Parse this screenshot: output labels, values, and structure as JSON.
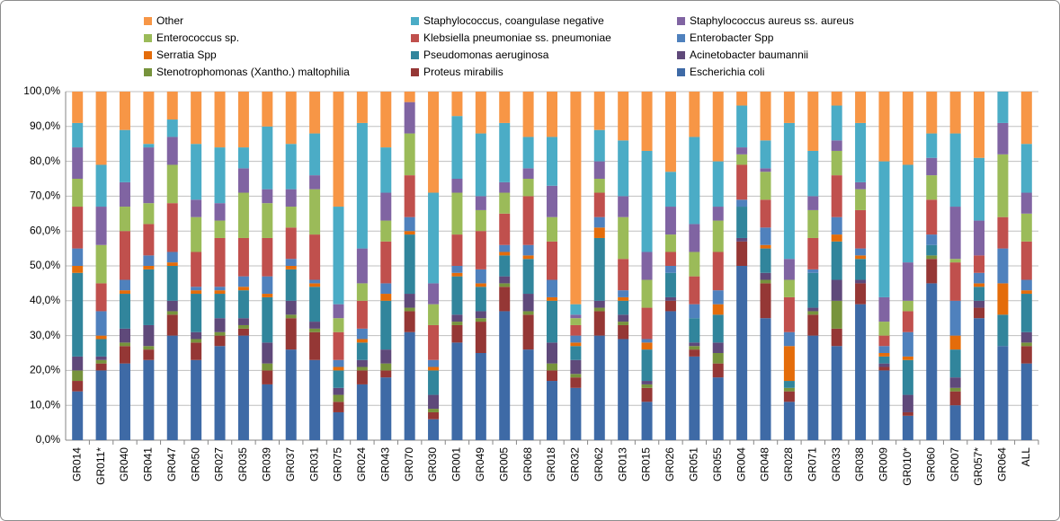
{
  "chart_data": {
    "type": "stacked_bar",
    "categories": [
      "GR014",
      "GR011*",
      "GR040",
      "GR041",
      "GR047",
      "GR050",
      "GR027",
      "GR035",
      "GR039",
      "GR037",
      "GR031",
      "GR075",
      "GR024",
      "GR043",
      "GR070",
      "GR030",
      "GR001",
      "GR049",
      "GR005",
      "GR068",
      "GR018",
      "GR032",
      "GR062",
      "GR013",
      "GR015",
      "GR026",
      "GR051",
      "GR055",
      "GR004",
      "GR048",
      "GR028",
      "GR071",
      "GR033",
      "GR038",
      "GR009",
      "GR010*",
      "GR060",
      "GR007",
      "GR057*",
      "GR064",
      "ALL"
    ],
    "ylim": [
      0,
      100
    ],
    "yticks": [
      {
        "value": 0,
        "label": "0,0%"
      },
      {
        "value": 10,
        "label": "10,0%"
      },
      {
        "value": 20,
        "label": "20,0%"
      },
      {
        "value": 30,
        "label": "30,0%"
      },
      {
        "value": 40,
        "label": "40,0%"
      },
      {
        "value": 50,
        "label": "50,0%"
      },
      {
        "value": 60,
        "label": "60,0%"
      },
      {
        "value": 70,
        "label": "70,0%"
      },
      {
        "value": 80,
        "label": "80,0%"
      },
      {
        "value": 90,
        "label": "90,0%"
      },
      {
        "value": 100,
        "label": "100,0%"
      }
    ],
    "grid": true,
    "series": [
      {
        "name": "Other",
        "color": "#f79646",
        "values": [
          9,
          21,
          11,
          15,
          8,
          15,
          16,
          16,
          10,
          15,
          12,
          33,
          9,
          16,
          3,
          29,
          7,
          12,
          9,
          13,
          13,
          61,
          11,
          14,
          17,
          23,
          13,
          20,
          4,
          14,
          9,
          17,
          4,
          9,
          20,
          21,
          12,
          12,
          19,
          0,
          15
        ]
      },
      {
        "name": "Staphylococcus, coangulase negative",
        "color": "#4bacc6",
        "values": [
          7,
          12,
          15,
          1,
          5,
          16,
          16,
          6,
          18,
          13,
          12,
          28,
          36,
          13,
          0,
          26,
          18,
          18,
          17,
          9,
          14,
          3,
          9,
          16,
          29,
          10,
          25,
          13,
          12,
          8,
          39,
          13,
          10,
          17,
          39,
          28,
          7,
          21,
          18,
          9,
          14
        ]
      },
      {
        "name": "Staphylococcus aureus ss. aureus",
        "color": "#8064a2",
        "values": [
          9,
          11,
          7,
          16,
          8,
          5,
          5,
          7,
          4,
          5,
          4,
          4,
          10,
          8,
          9,
          6,
          4,
          4,
          3,
          3,
          9,
          1,
          5,
          6,
          8,
          8,
          8,
          4,
          2,
          1,
          6,
          4,
          3,
          2,
          7,
          11,
          5,
          15,
          10,
          9,
          6
        ]
      },
      {
        "name": "Enterococcus sp.",
        "color": "#9bbb59",
        "values": [
          8,
          11,
          7,
          6,
          11,
          10,
          5,
          13,
          10,
          6,
          13,
          4,
          5,
          6,
          12,
          6,
          12,
          6,
          6,
          5,
          7,
          2,
          4,
          12,
          8,
          5,
          7,
          9,
          3,
          8,
          5,
          8,
          7,
          6,
          4,
          3,
          7,
          1,
          0,
          18,
          8
        ]
      },
      {
        "name": "Klebsiella pneumoniae ss. pneumoniae",
        "color": "#c0504d",
        "values": [
          12,
          8,
          14,
          9,
          14,
          10,
          14,
          11,
          11,
          9,
          13,
          8,
          8,
          12,
          12,
          10,
          9,
          11,
          9,
          14,
          11,
          3,
          7,
          9,
          9,
          4,
          8,
          11,
          10,
          8,
          10,
          9,
          12,
          11,
          3,
          6,
          10,
          11,
          5,
          9,
          11
        ]
      },
      {
        "name": "Enterobacter Spp",
        "color": "#4f81bd",
        "values": [
          5,
          7,
          3,
          3,
          3,
          1,
          1,
          3,
          5,
          2,
          1,
          2,
          3,
          3,
          4,
          2,
          2,
          4,
          2,
          3,
          5,
          2,
          3,
          2,
          1,
          2,
          4,
          4,
          2,
          5,
          4,
          1,
          5,
          2,
          2,
          7,
          3,
          10,
          3,
          10,
          3
        ]
      },
      {
        "name": "Serratia Spp",
        "color": "#e46c0a",
        "values": [
          2,
          1,
          1,
          1,
          1,
          1,
          1,
          1,
          1,
          1,
          1,
          1,
          1,
          2,
          1,
          1,
          1,
          1,
          1,
          1,
          1,
          1,
          3,
          1,
          2,
          0,
          0,
          3,
          0,
          1,
          10,
          0,
          2,
          1,
          1,
          1,
          0,
          4,
          1,
          9,
          1
        ]
      },
      {
        "name": "Pseudomonas aeruginosa",
        "color": "#31859c",
        "values": [
          24,
          5,
          10,
          16,
          10,
          11,
          7,
          8,
          13,
          9,
          10,
          5,
          5,
          14,
          17,
          7,
          11,
          7,
          6,
          10,
          12,
          4,
          18,
          4,
          9,
          7,
          7,
          8,
          9,
          7,
          2,
          10,
          11,
          6,
          2,
          10,
          3,
          8,
          4,
          9,
          11
        ]
      },
      {
        "name": "Acinetobacter baumannii",
        "color": "#5f497a",
        "values": [
          4,
          1,
          4,
          6,
          3,
          2,
          4,
          2,
          6,
          4,
          2,
          2,
          2,
          4,
          4,
          4,
          2,
          2,
          2,
          5,
          6,
          4,
          2,
          2,
          1,
          1,
          1,
          3,
          1,
          2,
          0,
          1,
          6,
          1,
          1,
          5,
          0,
          3,
          2,
          0,
          3
        ]
      },
      {
        "name": "Stenotrophomonas (Xantho.) maltophilia",
        "color": "#77933c",
        "values": [
          3,
          1,
          1,
          1,
          1,
          1,
          1,
          1,
          2,
          1,
          1,
          2,
          1,
          2,
          1,
          1,
          1,
          1,
          1,
          1,
          2,
          1,
          1,
          1,
          1,
          0,
          1,
          3,
          0,
          1,
          1,
          1,
          8,
          0,
          0,
          0,
          1,
          1,
          0,
          0,
          1
        ]
      },
      {
        "name": "Proteus mirabilis",
        "color": "#953735",
        "values": [
          3,
          2,
          5,
          3,
          6,
          5,
          3,
          2,
          4,
          9,
          8,
          3,
          4,
          2,
          6,
          2,
          5,
          9,
          7,
          10,
          3,
          3,
          7,
          4,
          4,
          3,
          2,
          4,
          7,
          10,
          3,
          6,
          5,
          6,
          1,
          1,
          7,
          4,
          3,
          0,
          5
        ]
      },
      {
        "name": "Escherichia coli",
        "color": "#3e6aa6",
        "values": [
          14,
          20,
          22,
          23,
          30,
          23,
          27,
          30,
          16,
          26,
          23,
          8,
          16,
          18,
          31,
          6,
          28,
          25,
          37,
          26,
          17,
          15,
          30,
          29,
          11,
          37,
          24,
          18,
          50,
          35,
          11,
          30,
          27,
          39,
          20,
          7,
          45,
          10,
          35,
          27,
          22
        ]
      }
    ]
  }
}
